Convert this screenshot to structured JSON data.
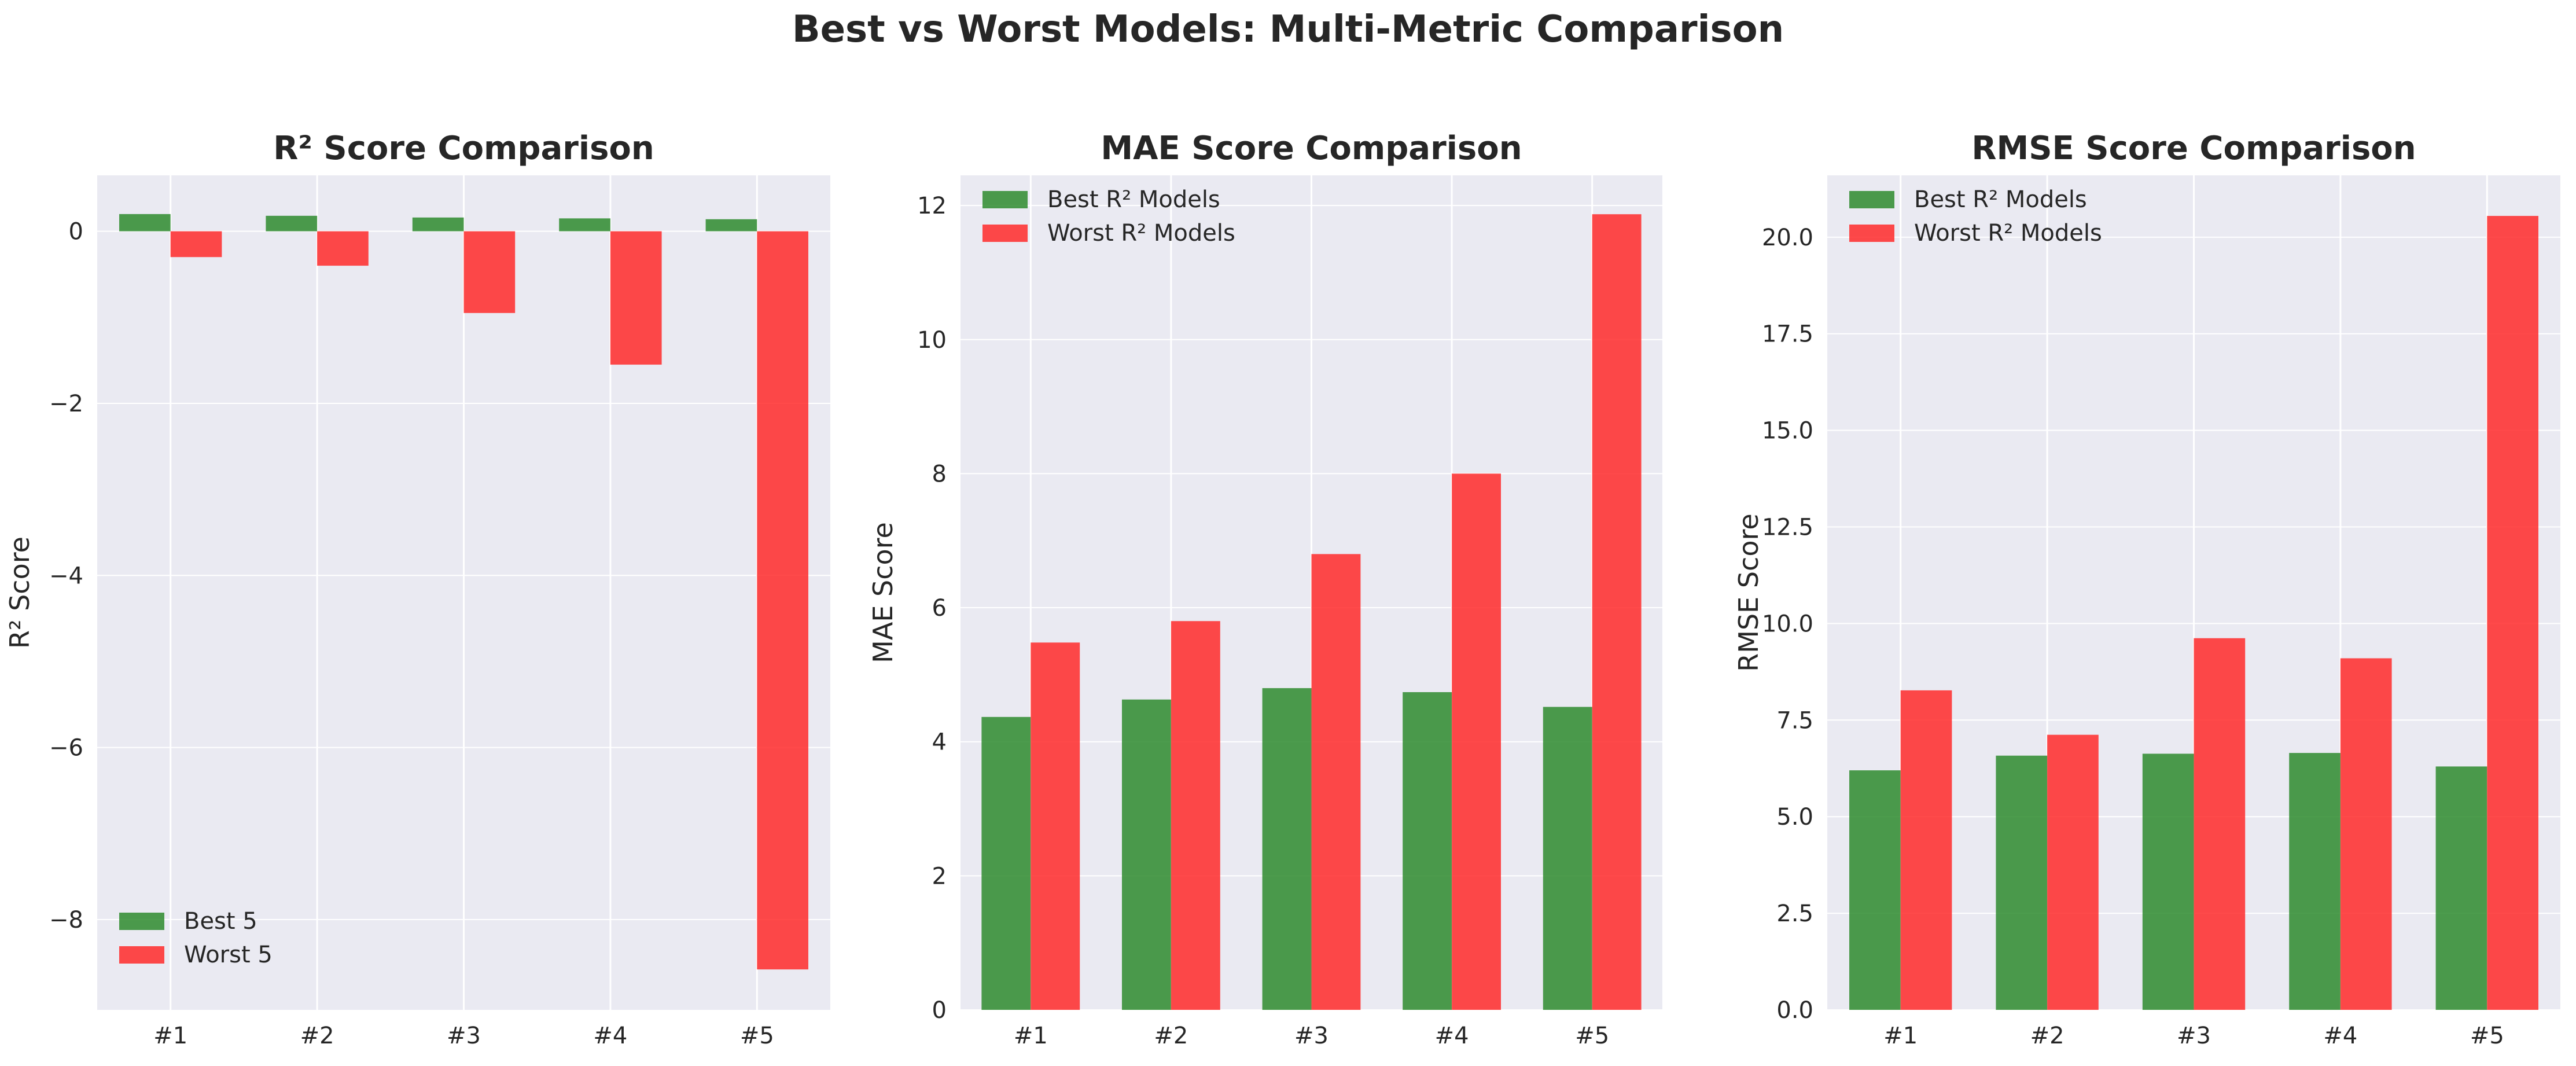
{
  "figure": {
    "suptitle": "Best vs Worst Models: Multi-Metric Comparison"
  },
  "colors": {
    "best": "#2e8b2e",
    "worst": "#ff2a2a",
    "plot_bg": "#eaeaf2",
    "grid": "#ffffff",
    "text": "#262626"
  },
  "chart_data": [
    {
      "type": "bar",
      "title": "R² Score Comparison",
      "xlabel": "",
      "ylabel": "R² Score",
      "categories": [
        "#1",
        "#2",
        "#3",
        "#4",
        "#5"
      ],
      "series": [
        {
          "name": "Best 5",
          "values": [
            0.2,
            0.18,
            0.16,
            0.15,
            0.14
          ]
        },
        {
          "name": "Worst 5",
          "values": [
            -0.3,
            -0.4,
            -0.95,
            -1.55,
            -8.58
          ]
        }
      ],
      "ylim": [
        -9.05,
        0.65
      ],
      "yticks": [
        0,
        -2,
        -4,
        -6,
        -8
      ],
      "ytick_labels": [
        "0",
        "−2",
        "−4",
        "−6",
        "−8"
      ],
      "legend_loc": "lower-left",
      "grid": true
    },
    {
      "type": "bar",
      "title": "MAE Score Comparison",
      "xlabel": "",
      "ylabel": "MAE Score",
      "categories": [
        "#1",
        "#2",
        "#3",
        "#4",
        "#5"
      ],
      "series": [
        {
          "name": "Best R² Models",
          "values": [
            4.37,
            4.63,
            4.8,
            4.74,
            4.52
          ]
        },
        {
          "name": "Worst R² Models",
          "values": [
            5.48,
            5.8,
            6.8,
            8.0,
            11.87
          ]
        }
      ],
      "ylim": [
        0,
        12.45
      ],
      "yticks": [
        0,
        2,
        4,
        6,
        8,
        10,
        12
      ],
      "ytick_labels": [
        "0",
        "2",
        "4",
        "6",
        "8",
        "10",
        "12"
      ],
      "legend_loc": "top-left",
      "grid": true
    },
    {
      "type": "bar",
      "title": "RMSE Score Comparison",
      "xlabel": "",
      "ylabel": "RMSE Score",
      "categories": [
        "#1",
        "#2",
        "#3",
        "#4",
        "#5"
      ],
      "series": [
        {
          "name": "Best R² Models",
          "values": [
            6.2,
            6.58,
            6.63,
            6.65,
            6.3
          ]
        },
        {
          "name": "Worst R² Models",
          "values": [
            8.27,
            7.12,
            9.62,
            9.1,
            20.55
          ]
        }
      ],
      "ylim": [
        0,
        21.6
      ],
      "yticks": [
        0,
        2.5,
        5,
        7.5,
        10,
        12.5,
        15,
        17.5,
        20
      ],
      "ytick_labels": [
        "0.0",
        "2.5",
        "5.0",
        "7.5",
        "10.0",
        "12.5",
        "15.0",
        "17.5",
        "20.0"
      ],
      "legend_loc": "top-left",
      "grid": true
    }
  ]
}
